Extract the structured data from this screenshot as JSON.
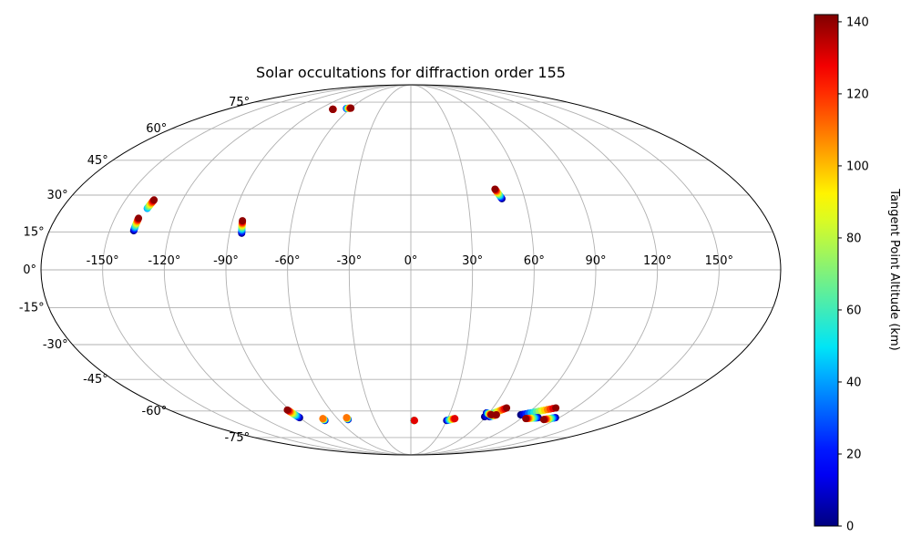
{
  "chart_data": {
    "type": "scatter",
    "projection": "mollweide",
    "title": "Solar occultations for diffraction order 155",
    "xlabel": "",
    "ylabel": "",
    "grid": true,
    "longitude_ticks": [
      -150,
      -120,
      -90,
      -60,
      -30,
      0,
      30,
      60,
      90,
      120,
      150
    ],
    "longitude_tick_labels": [
      "-150°",
      "-120°",
      "-90°",
      "-60°",
      "-30°",
      "0°",
      "30°",
      "60°",
      "90°",
      "120°",
      "150°"
    ],
    "latitude_ticks": [
      75,
      60,
      45,
      30,
      15,
      0,
      -15,
      -30,
      -45,
      -60,
      -75
    ],
    "latitude_tick_labels": [
      "75°",
      "60°",
      "45°",
      "30°",
      "15°",
      "0°",
      "-15°",
      "-30°",
      "-45°",
      "-60°",
      "-75°"
    ],
    "colormap": "jet",
    "colorbar": {
      "label": "Tangent Point Altitude (km)",
      "range": [
        0,
        142
      ],
      "ticks": [
        0,
        20,
        40,
        60,
        80,
        100,
        120,
        140
      ],
      "tick_labels": [
        "0",
        "20",
        "40",
        "60",
        "80",
        "100",
        "120",
        "140"
      ]
    },
    "occultations": [
      {
        "start": [
          -138,
          15.5
        ],
        "end": [
          -138,
          20.5
        ],
        "altitude_range": [
          0,
          140
        ]
      },
      {
        "start": [
          -136,
          24.5
        ],
        "end": [
          -135,
          28
        ],
        "altitude_range": [
          40,
          140
        ]
      },
      {
        "start": [
          -84,
          14.5
        ],
        "end": [
          -85,
          19.5
        ],
        "altitude_range": [
          0,
          140
        ]
      },
      {
        "start": [
          -76,
          70.6
        ],
        "end": [
          -76.5,
          70.6
        ],
        "altitude_range": [
          120,
          140
        ]
      },
      {
        "start": [
          -64,
          71.1
        ],
        "end": [
          -60,
          71.3
        ],
        "altitude_range": [
          20,
          140
        ]
      },
      {
        "start": [
          48,
          28.5
        ],
        "end": [
          45.5,
          32.5
        ],
        "altitude_range": [
          0,
          140
        ]
      },
      {
        "start": [
          -90,
          -63.5
        ],
        "end": [
          -92,
          -59.5
        ],
        "altitude_range": [
          0,
          140
        ]
      },
      {
        "start": [
          -72,
          -65
        ],
        "end": [
          -72,
          -64
        ],
        "altitude_range": [
          0,
          110
        ]
      },
      {
        "start": [
          -52,
          -64.5
        ],
        "end": [
          -52,
          -63.5
        ],
        "altitude_range": [
          0,
          110
        ]
      },
      {
        "start": [
          2.5,
          -65
        ],
        "end": [
          3,
          -65
        ],
        "altitude_range": [
          0,
          130
        ]
      },
      {
        "start": [
          30,
          -65
        ],
        "end": [
          36,
          -64
        ],
        "altitude_range": [
          0,
          130
        ]
      },
      {
        "start": [
          59,
          -63
        ],
        "end": [
          70,
          -58.5
        ],
        "altitude_range": [
          0,
          140
        ]
      },
      {
        "start": [
          63,
          -63
        ],
        "end": [
          67,
          -62
        ],
        "altitude_range": [
          0,
          140
        ]
      },
      {
        "start": [
          58,
          -61
        ],
        "end": [
          63,
          -62
        ],
        "altitude_range": [
          0,
          140
        ]
      },
      {
        "start": [
          86,
          -62
        ],
        "end": [
          106,
          -58.5
        ],
        "altitude_range": [
          0,
          140
        ]
      },
      {
        "start": [
          103,
          -63.5
        ],
        "end": [
          94,
          -64
        ],
        "altitude_range": [
          0,
          140
        ]
      },
      {
        "start": [
          117,
          -63.5
        ],
        "end": [
          110,
          -64.5
        ],
        "altitude_range": [
          0,
          140
        ]
      }
    ]
  }
}
